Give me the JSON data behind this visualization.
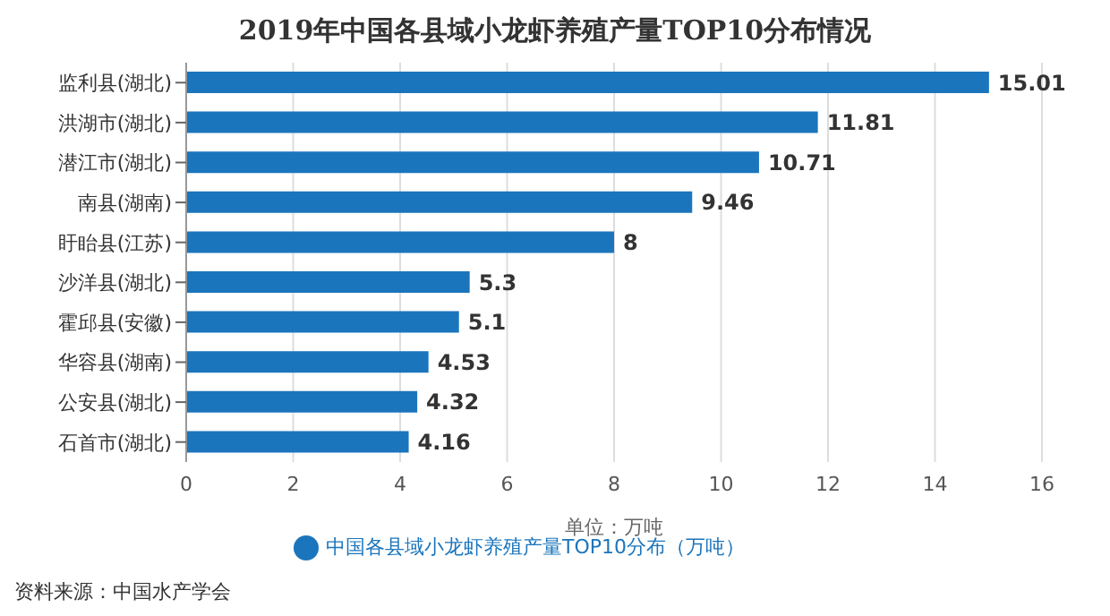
{
  "chart_data": {
    "type": "bar",
    "orientation": "horizontal",
    "title": "2019年中国各县域小龙虾养殖产量TOP10分布情况",
    "xlabel": "单位：万吨",
    "categories": [
      "监利县(湖北)",
      "洪湖市(湖北)",
      "潜江市(湖北)",
      "南县(湖南)",
      "盱眙县(江苏)",
      "沙洋县(湖北)",
      "霍邱县(安徽)",
      "华容县(湖南)",
      "公安县(湖北)",
      "石首市(湖北)"
    ],
    "series": [
      {
        "name": "中国各县域小龙虾养殖产量TOP10分布（万吨）",
        "color": "#1b75bc",
        "values": [
          15.01,
          11.81,
          10.71,
          9.46,
          8,
          5.3,
          5.1,
          4.53,
          4.32,
          4.16
        ]
      }
    ],
    "xlim": [
      0,
      16
    ],
    "xticks": [
      0,
      2,
      4,
      6,
      8,
      10,
      12,
      14,
      16
    ],
    "grid": "x",
    "legend": "bottom",
    "data_labels": true,
    "annotations": [
      "资料来源：中国水产学会"
    ]
  }
}
